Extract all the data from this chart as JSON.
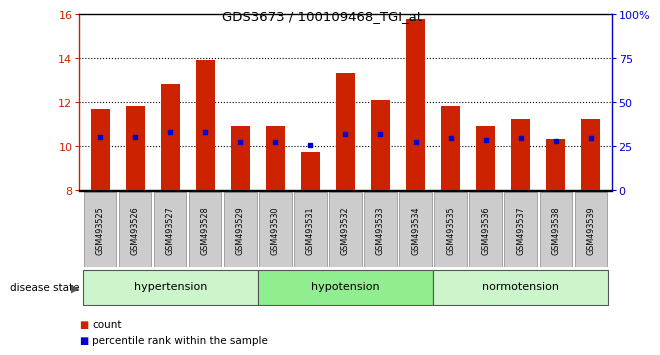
{
  "title": "GDS3673 / 100109468_TGI_at",
  "samples": [
    "GSM493525",
    "GSM493526",
    "GSM493527",
    "GSM493528",
    "GSM493529",
    "GSM493530",
    "GSM493531",
    "GSM493532",
    "GSM493533",
    "GSM493534",
    "GSM493535",
    "GSM493536",
    "GSM493537",
    "GSM493538",
    "GSM493539"
  ],
  "bar_heights": [
    11.7,
    11.8,
    12.8,
    13.9,
    10.9,
    10.9,
    9.7,
    13.3,
    12.1,
    15.8,
    11.8,
    10.9,
    11.2,
    10.3,
    11.2
  ],
  "blue_markers": [
    10.4,
    10.4,
    10.65,
    10.65,
    10.15,
    10.15,
    10.05,
    10.55,
    10.55,
    10.15,
    10.35,
    10.25,
    10.35,
    10.2,
    10.35
  ],
  "ymin": 8,
  "ymax": 16,
  "right_yticks": [
    0,
    25,
    50,
    75,
    100
  ],
  "right_yticklabels": [
    "0",
    "25",
    "50",
    "75",
    "100%"
  ],
  "left_yticks": [
    8,
    10,
    12,
    14,
    16
  ],
  "groups": [
    {
      "label": "hypertension",
      "start": 0,
      "end": 5
    },
    {
      "label": "hypotension",
      "start": 5,
      "end": 10
    },
    {
      "label": "normotension",
      "start": 10,
      "end": 15
    }
  ],
  "group_colors": [
    "#ccf5cc",
    "#90ee90",
    "#ccf5cc"
  ],
  "bar_color": "#CC2200",
  "blue_color": "#0000CC",
  "tick_bg_color": "#CCCCCC",
  "axis_color_left": "#CC2200",
  "axis_color_right": "#0000CC",
  "disease_state_label": "disease state",
  "legend_count": "count",
  "legend_percentile": "percentile rank within the sample",
  "dotted_lines": [
    10,
    12,
    14
  ]
}
